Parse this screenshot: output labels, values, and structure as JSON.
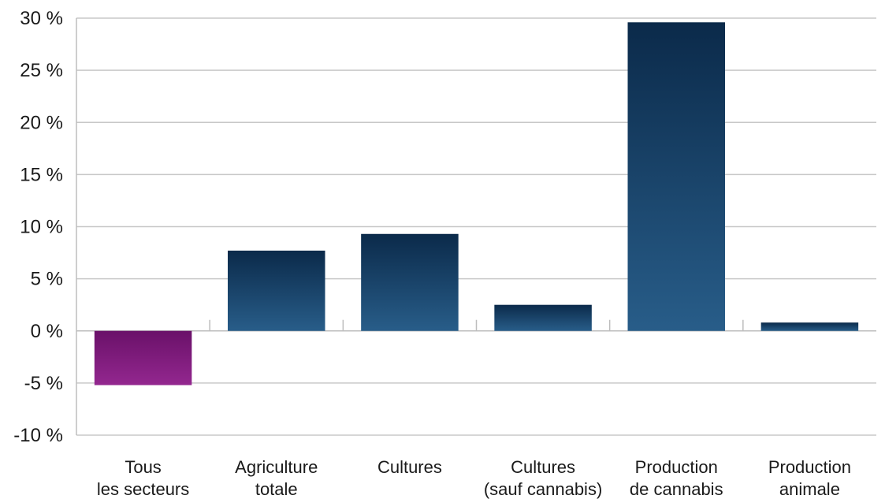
{
  "chart_data": {
    "type": "bar",
    "title": "",
    "xlabel": "",
    "ylabel": "",
    "categories": [
      [
        "Tous",
        "les secteurs"
      ],
      [
        "Agriculture",
        "totale"
      ],
      [
        "Cultures"
      ],
      [
        "Cultures",
        "(sauf cannabis)"
      ],
      [
        "Production",
        "de cannabis"
      ],
      [
        "Production",
        "animale"
      ]
    ],
    "values": [
      -5.2,
      7.7,
      9.3,
      2.5,
      29.6,
      0.8
    ],
    "ylim": [
      -10,
      30
    ],
    "yticks": [
      30,
      25,
      20,
      15,
      10,
      5,
      0,
      -5,
      -10
    ],
    "ytick_labels": [
      "30 %",
      "25 %",
      "20 %",
      "15 %",
      "10 %",
      "5 %",
      "0 %",
      "-5 %",
      "-10 %"
    ],
    "grid": true,
    "legend": "none",
    "colors": {
      "positive_top": "#0b2a4a",
      "positive_bottom": "#285d89",
      "negative_top": "#6a1169",
      "negative_bottom": "#93278f"
    }
  }
}
